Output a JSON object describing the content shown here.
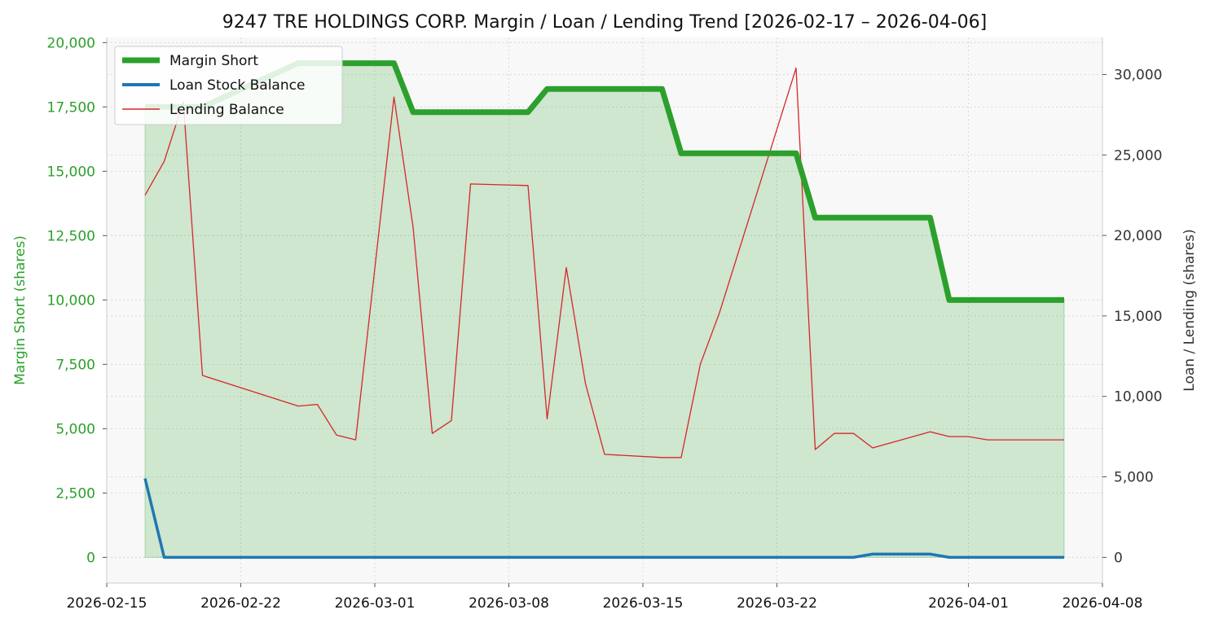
{
  "chart_data": {
    "type": "line",
    "title": "9247 TRE HOLDINGS CORP. Margin / Loan / Lending Trend [2026-02-17 – 2026-04-06]",
    "xlabel": "",
    "ylabel_left": "Margin Short (shares)",
    "ylabel_right": "Loan / Lending (shares)",
    "xlim": [
      "2026-02-15",
      "2026-04-08"
    ],
    "ylim_left": [
      -1000,
      20200
    ],
    "ylim_right": [
      -1600,
      32300
    ],
    "x_ticks": [
      "2026-02-15",
      "2026-02-22",
      "2026-03-01",
      "2026-03-08",
      "2026-03-15",
      "2026-03-22",
      "2026-04-01",
      "2026-04-08"
    ],
    "y_left_ticks": [
      0,
      2500,
      5000,
      7500,
      10000,
      12500,
      15000,
      17500,
      20000
    ],
    "y_left_tick_labels": [
      "0",
      "2,500",
      "5,000",
      "7,500",
      "10,000",
      "12,500",
      "15,000",
      "17,500",
      "20,000"
    ],
    "y_right_ticks": [
      0,
      5000,
      10000,
      15000,
      20000,
      25000,
      30000
    ],
    "y_right_tick_labels": [
      "0",
      "5,000",
      "10,000",
      "15,000",
      "20,000",
      "25,000",
      "30,000"
    ],
    "grid": true,
    "legend": "top-left",
    "x": [
      "2026-02-17",
      "2026-02-18",
      "2026-02-19",
      "2026-02-20",
      "2026-02-25",
      "2026-02-26",
      "2026-02-27",
      "2026-02-28",
      "2026-03-02",
      "2026-03-03",
      "2026-03-04",
      "2026-03-05",
      "2026-03-06",
      "2026-03-09",
      "2026-03-10",
      "2026-03-11",
      "2026-03-12",
      "2026-03-13",
      "2026-03-16",
      "2026-03-17",
      "2026-03-18",
      "2026-03-19",
      "2026-03-23",
      "2026-03-24",
      "2026-03-25",
      "2026-03-26",
      "2026-03-27",
      "2026-03-30",
      "2026-03-31",
      "2026-04-01",
      "2026-04-02",
      "2026-04-03",
      "2026-04-06"
    ],
    "series": [
      {
        "name": "Margin Short",
        "axis": "left",
        "color": "#2ca02c",
        "fill": true,
        "values": [
          17500,
          17500,
          17500,
          17500,
          19200,
          19200,
          19200,
          19200,
          19200,
          17300,
          17300,
          17300,
          17300,
          17300,
          18200,
          18200,
          18200,
          18200,
          18200,
          15700,
          15700,
          15700,
          15700,
          13200,
          13200,
          13200,
          13200,
          13200,
          10000,
          10000,
          10000,
          10000,
          10000
        ]
      },
      {
        "name": "Loan Stock Balance",
        "axis": "right",
        "color": "#1f77b4",
        "values": [
          4900,
          0,
          0,
          0,
          0,
          0,
          0,
          0,
          0,
          0,
          0,
          0,
          0,
          0,
          0,
          0,
          0,
          0,
          0,
          0,
          0,
          0,
          0,
          0,
          0,
          0,
          200,
          200,
          0,
          0,
          0,
          0,
          0
        ]
      },
      {
        "name": "Lending Balance",
        "axis": "right",
        "color": "#d62728",
        "values": [
          22500,
          24600,
          28300,
          11300,
          9400,
          9500,
          7600,
          7300,
          28600,
          20500,
          7700,
          8500,
          23200,
          23100,
          8600,
          18000,
          10800,
          6400,
          6200,
          6200,
          12000,
          15200,
          30400,
          6700,
          7700,
          7700,
          6800,
          7800,
          7500,
          7500,
          7300,
          7300,
          7300
        ]
      }
    ]
  }
}
